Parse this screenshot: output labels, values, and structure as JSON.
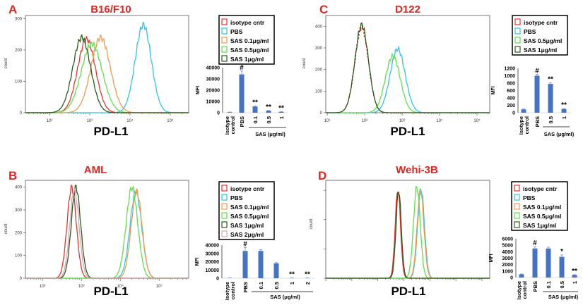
{
  "panels": [
    {
      "letter": "A",
      "title": "B16/F10"
    },
    {
      "letter": "C",
      "title": "D122"
    },
    {
      "letter": "B",
      "title": "AML"
    },
    {
      "letter": "D",
      "title": "Wehi-3B"
    }
  ],
  "colors": {
    "isotype": "#e8322e",
    "pbs": "#2fc4e6",
    "sas01": "#f29a4a",
    "sas05": "#5ee04a",
    "sas1": "#2c5a1e",
    "sas2": "#d8a8b4",
    "panel_label": "#e0241f",
    "bar": "#4472c4"
  },
  "chart_data": [
    {
      "type": "area",
      "panel": "A",
      "xlabel": "PD-L1",
      "ylabel": "count",
      "x_scale": "log",
      "xlim_log10": [
        1.4,
        5.46
      ],
      "ylim": [
        0,
        310
      ],
      "x_ticks": [
        "10²",
        "10³",
        "10⁴",
        "10⁵"
      ],
      "x_tick_log10": [
        2,
        3,
        4,
        5
      ],
      "y_ticks": [
        "0",
        "100",
        "200",
        "300"
      ],
      "y_tick_values": [
        0,
        100,
        200,
        300
      ],
      "series": [
        {
          "name": "isotype cntr",
          "color": "#e8322e",
          "peak_log10": 2.92,
          "peak_count": 235,
          "spread_log10": 0.22
        },
        {
          "name": "PBS",
          "color": "#2fc4e6",
          "peak_log10": 4.33,
          "peak_count": 280,
          "spread_log10": 0.2
        },
        {
          "name": "SAS 0.1μg/ml",
          "color": "#f29a4a",
          "peak_log10": 3.27,
          "peak_count": 240,
          "spread_log10": 0.24
        },
        {
          "name": "SAS 0.5μg/ml",
          "color": "#5ee04a",
          "peak_log10": 3.05,
          "peak_count": 220,
          "spread_log10": 0.26
        },
        {
          "name": "SAS 1μg/ml",
          "color": "#2c5a1e",
          "peak_log10": 2.8,
          "peak_count": 240,
          "spread_log10": 0.22
        }
      ]
    },
    {
      "type": "area",
      "panel": "C",
      "xlabel": "PD-L1",
      "ylabel": "count",
      "x_scale": "log",
      "xlim_log10": [
        0.96,
        5.34
      ],
      "ylim": [
        0,
        450
      ],
      "x_ticks": [
        "10¹",
        "10²",
        "10³",
        "10⁴",
        "10⁵"
      ],
      "x_tick_log10": [
        1,
        2,
        3,
        4,
        5
      ],
      "y_ticks": [
        "0",
        "100",
        "200",
        "300",
        "400"
      ],
      "y_tick_values": [
        0,
        100,
        200,
        300,
        400
      ],
      "series": [
        {
          "name": "isotype cntr",
          "color": "#e8322e",
          "peak_log10": 1.92,
          "peak_count": 395,
          "spread_log10": 0.18,
          "dashed": true
        },
        {
          "name": "PBS",
          "color": "#2fc4e6",
          "peak_log10": 2.88,
          "peak_count": 295,
          "spread_log10": 0.2
        },
        {
          "name": "SAS 0.5μg/ml",
          "color": "#5ee04a",
          "peak_log10": 2.75,
          "peak_count": 262,
          "spread_log10": 0.2
        },
        {
          "name": "SAS 1μg/ml",
          "color": "#2c5a1e",
          "peak_log10": 1.92,
          "peak_count": 405,
          "spread_log10": 0.18
        }
      ]
    },
    {
      "type": "area",
      "panel": "B",
      "xlabel": "PD-L1",
      "ylabel": "count",
      "x_scale": "log",
      "xlim_log10": [
        1.56,
        5.76
      ],
      "ylim": [
        0,
        430
      ],
      "x_ticks": [
        "10²",
        "10³",
        "10⁴",
        "10⁵"
      ],
      "x_tick_log10": [
        2,
        3,
        4,
        5
      ],
      "y_ticks": [
        "0",
        "100",
        "200",
        "300",
        "400"
      ],
      "y_tick_values": [
        0,
        100,
        200,
        300,
        400
      ],
      "series": [
        {
          "name": "isotype cntr",
          "color": "#e8322e",
          "peak_log10": 2.75,
          "peak_count": 398,
          "spread_log10": 0.12
        },
        {
          "name": "PBS",
          "color": "#2fc4e6",
          "peak_log10": 4.4,
          "peak_count": 380,
          "spread_log10": 0.15
        },
        {
          "name": "SAS 0.1μg/ml",
          "color": "#f29a4a",
          "peak_log10": 4.42,
          "peak_count": 382,
          "spread_log10": 0.14
        },
        {
          "name": "SAS 0.5μg/ml",
          "color": "#5ee04a",
          "peak_log10": 4.3,
          "peak_count": 398,
          "spread_log10": 0.15
        },
        {
          "name": "SAS 1μg/ml",
          "color": "#2c5a1e",
          "peak_log10": 2.86,
          "peak_count": 400,
          "spread_log10": 0.12
        },
        {
          "name": "SAS 2μg/ml",
          "color": "#d8a8b4",
          "peak_log10": 2.82,
          "peak_count": 385,
          "spread_log10": 0.12
        }
      ]
    },
    {
      "type": "area",
      "panel": "D",
      "xlabel": "PD-L1",
      "ylabel": "count",
      "x_scale": "log",
      "ylim": [
        0,
        334
      ],
      "series": [
        {
          "name": "isotype cntr",
          "color": "#e8322e",
          "peak_log10": 2.77,
          "peak_count": 305,
          "spread_log10": 0.1
        },
        {
          "name": "PBS",
          "color": "#2fc4e6",
          "peak_log10": 3.66,
          "peak_count": 305,
          "spread_log10": 0.13
        },
        {
          "name": "SAS 0.1μg/ml",
          "color": "#f29a4a",
          "peak_log10": 3.64,
          "peak_count": 300,
          "spread_log10": 0.13
        },
        {
          "name": "SAS 0.5μg/ml",
          "color": "#5ee04a",
          "peak_log10": 3.5,
          "peak_count": 312,
          "spread_log10": 0.13
        },
        {
          "name": "SAS 1μg/ml",
          "color": "#2c5a1e",
          "peak_log10": 2.8,
          "peak_count": 300,
          "spread_log10": 0.1
        }
      ]
    },
    {
      "type": "bar",
      "panel": "A",
      "ylabel": "MFI",
      "ylim": [
        0,
        40000
      ],
      "y_ticks": [
        "0",
        "10000",
        "20000",
        "30000",
        "40000"
      ],
      "categories": [
        "Isotype control",
        "PBS",
        "0.1",
        "0.5",
        "1"
      ],
      "values": [
        500,
        34000,
        5500,
        1800,
        800
      ],
      "errors": [
        100,
        3000,
        500,
        200,
        100
      ],
      "annotations": [
        "",
        "#",
        "**",
        "**",
        "**"
      ],
      "group_label": "SAS (μg/ml)"
    },
    {
      "type": "bar",
      "panel": "C",
      "ylabel": "MFI",
      "ylim": [
        0,
        1200
      ],
      "y_ticks": [
        "0",
        "200",
        "400",
        "600",
        "800",
        "1000",
        "1200"
      ],
      "categories": [
        "Isotype control",
        "PBS",
        "0.5",
        "1"
      ],
      "values": [
        90,
        1000,
        780,
        100
      ],
      "errors": [
        10,
        40,
        30,
        10
      ],
      "annotations": [
        "",
        "#",
        "**",
        "**"
      ],
      "group_label": "SAS (μg/ml)"
    },
    {
      "type": "bar",
      "panel": "B",
      "ylabel": "MFI",
      "ylim": [
        0,
        40000
      ],
      "y_ticks": [
        "0",
        "10000",
        "20000",
        "30000",
        "40000"
      ],
      "categories": [
        "Isotype control",
        "PBS",
        "0.1",
        "0.5",
        "1",
        "2"
      ],
      "values": [
        300,
        33000,
        33000,
        18000,
        300,
        300
      ],
      "errors": [
        100,
        4000,
        1500,
        1000,
        100,
        100
      ],
      "annotations": [
        "",
        "#",
        "",
        "",
        "**",
        "**"
      ],
      "group_label": "SAS (μg/ml)"
    },
    {
      "type": "bar",
      "panel": "D",
      "ylabel": "MFI",
      "ylim": [
        0,
        6000
      ],
      "y_ticks": [
        "0",
        "1000",
        "2000",
        "3000",
        "4000",
        "5000",
        "6000"
      ],
      "categories": [
        "Isotype control",
        "PBS",
        "0.1",
        "0.5",
        "1"
      ],
      "values": [
        500,
        4500,
        4500,
        3200,
        400
      ],
      "errors": [
        50,
        300,
        200,
        300,
        50
      ],
      "annotations": [
        "",
        "#",
        "",
        "*",
        "**"
      ],
      "group_label": "SAS (μg/ml)"
    }
  ]
}
